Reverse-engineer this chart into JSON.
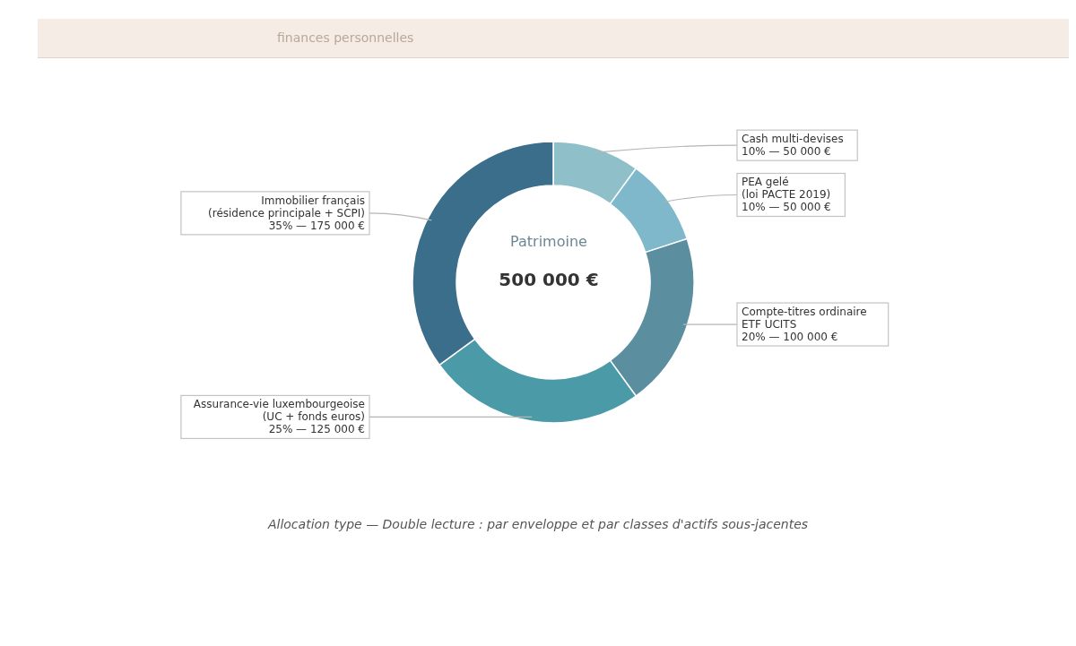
{
  "chart_data": {
    "type": "donut",
    "subtitle": "finances personnelles",
    "categories": [
      "Cash multi-devises",
      "PEA gelé\n(loi PACTE 2019)",
      "Compte-titres ordinaire\nETF UCITS",
      "Assurance-vie luxembourgeoise\n(UC + fonds euros)",
      "Immobilier français\n(résidence principale + SCPI)"
    ],
    "values": [
      50000,
      50000,
      100000,
      125000,
      175000
    ],
    "value_labels": [
      "10%  —  50 000 €",
      "10%  —  50 000 €",
      "20%  —  100 000 €",
      "25%  —  125 000 €",
      "35%  —  175 000 €"
    ],
    "colors": [
      "#8fc0c9",
      "#7fb8cb",
      "#5b8fa0",
      "#4a9aa8",
      "#3b6e8a"
    ],
    "annotations": [
      "Patrimoine",
      "500 000 €",
      "Allocation type — Double lecture : par enveloppe et par classes d'actifs sous-jacentes"
    ]
  }
}
